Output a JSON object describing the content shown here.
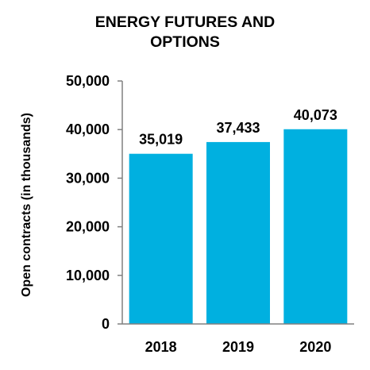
{
  "chart_data": {
    "type": "bar",
    "title_lines": [
      "ENERGY FUTURES AND",
      "OPTIONS"
    ],
    "xlabel": "",
    "ylabel": "Open contracts (in thousands)",
    "categories": [
      "2018",
      "2019",
      "2020"
    ],
    "values": [
      35019,
      37433,
      40073
    ],
    "data_labels": [
      "35,019",
      "37,433",
      "40,073"
    ],
    "ylim": [
      0,
      50000
    ],
    "yticks": [
      0,
      10000,
      20000,
      30000,
      40000,
      50000
    ],
    "ytick_labels": [
      "0",
      "10,000",
      "20,000",
      "30,000",
      "40,000",
      "50,000"
    ],
    "grid": false,
    "bar_color": "#00B0E0"
  }
}
